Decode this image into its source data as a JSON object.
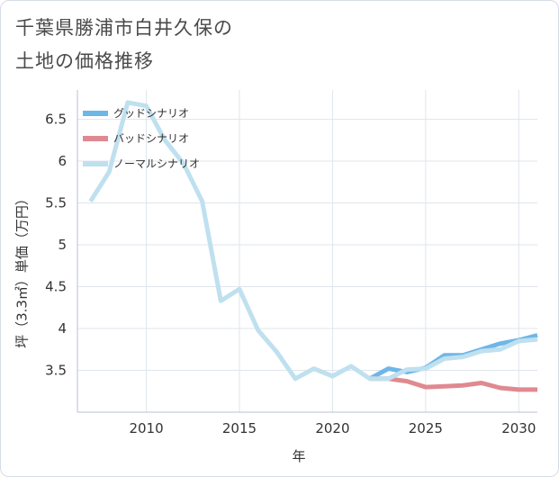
{
  "title_lines": [
    "千葉県勝浦市白井久保の",
    "土地の価格推移"
  ],
  "chart_data": {
    "type": "line",
    "xlabel": "年",
    "ylabel": "坪（3.3㎡）単価（万円）",
    "xlim": [
      2006.3,
      2031
    ],
    "ylim": [
      3.0,
      6.85
    ],
    "x_ticks": [
      2010,
      2015,
      2020,
      2025,
      2030
    ],
    "y_ticks": [
      3.5,
      4,
      4.5,
      5,
      5.5,
      6,
      6.5
    ],
    "y_tick_labels": [
      "3.5",
      "4",
      "4.5",
      "5",
      "5.5",
      "6",
      "6.5"
    ],
    "x_tick_labels": [
      "2010",
      "2015",
      "2020",
      "2025",
      "2030"
    ],
    "grid": true,
    "legend_position": "top-left",
    "series": [
      {
        "name": "グッドシナリオ",
        "color": "#6fb6e8",
        "x": [
          2022,
          2023,
          2024,
          2025,
          2026,
          2027,
          2028,
          2029,
          2030,
          2031
        ],
        "values": [
          3.4,
          3.52,
          3.48,
          3.53,
          3.68,
          3.68,
          3.75,
          3.82,
          3.86,
          3.92
        ]
      },
      {
        "name": "バッドシナリオ",
        "color": "#e08990",
        "x": [
          2022,
          2023,
          2024,
          2025,
          2026,
          2027,
          2028,
          2029,
          2030,
          2031
        ],
        "values": [
          3.4,
          3.4,
          3.37,
          3.3,
          3.31,
          3.32,
          3.35,
          3.29,
          3.27,
          3.27
        ]
      },
      {
        "name": "ノーマルシナリオ",
        "color": "#bfe0ef",
        "x": [
          2007,
          2008,
          2009,
          2010,
          2011,
          2012,
          2013,
          2014,
          2015,
          2016,
          2017,
          2018,
          2019,
          2020,
          2021,
          2022,
          2023,
          2024,
          2025,
          2026,
          2027,
          2028,
          2029,
          2030,
          2031
        ],
        "values": [
          5.52,
          5.87,
          6.7,
          6.66,
          6.25,
          5.97,
          5.52,
          4.33,
          4.47,
          3.98,
          3.72,
          3.4,
          3.52,
          3.43,
          3.55,
          3.4,
          3.4,
          3.51,
          3.52,
          3.64,
          3.66,
          3.73,
          3.75,
          3.85,
          3.87
        ]
      }
    ]
  }
}
